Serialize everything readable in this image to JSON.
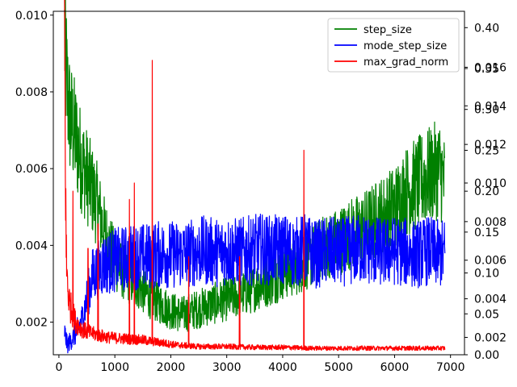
{
  "chart_data": {
    "type": "line",
    "title": "",
    "xlabel": "",
    "ylabel": "",
    "xlim": [
      -100,
      7250
    ],
    "x_ticks": [
      0,
      1000,
      2000,
      3000,
      4000,
      5000,
      6000,
      7000
    ],
    "x_tick_labels": [
      "0",
      "1000",
      "2000",
      "3000",
      "4000",
      "5000",
      "6000",
      "7000"
    ],
    "grid": false,
    "legend_position": "top-right",
    "axes": {
      "left": {
        "ylim": [
          0.00115,
          0.0101
        ],
        "ticks": [
          0.002,
          0.004,
          0.006,
          0.008,
          0.01
        ],
        "tick_labels": [
          "0.002",
          "0.004",
          "0.006",
          "0.008",
          "0.010"
        ]
      },
      "right_inner": {
        "ylim": [
          0.0011,
          0.0189
        ],
        "ticks": [
          0.002,
          0.004,
          0.006,
          0.008,
          0.01,
          0.012,
          0.014,
          0.016
        ],
        "tick_labels": [
          "0.002",
          "0.004",
          "0.006",
          "0.008",
          "0.010",
          "0.012",
          "0.014",
          "0.016"
        ]
      },
      "right_outer": {
        "ylim": [
          0.0,
          0.42
        ],
        "ticks": [
          0.0,
          0.05,
          0.1,
          0.15,
          0.2,
          0.25,
          0.3,
          0.35,
          0.4
        ],
        "tick_labels": [
          "0.00",
          "0.05",
          "0.10",
          "0.15",
          "0.20",
          "0.25",
          "0.30",
          "0.35",
          "0.40"
        ]
      }
    },
    "series": [
      {
        "name": "step_size",
        "color": "#008000",
        "axis": "left",
        "x": [
          100,
          150,
          200,
          300,
          400,
          500,
          600,
          700,
          800,
          900,
          1000,
          1200,
          1400,
          1600,
          1800,
          2000,
          2200,
          2400,
          2600,
          2800,
          3000,
          3200,
          3400,
          3600,
          3800,
          4000,
          4200,
          4400,
          4600,
          4800,
          5000,
          5200,
          5400,
          5600,
          5800,
          6000,
          6200,
          6400,
          6600,
          6800,
          6900
        ],
        "values": [
          0.0095,
          0.008,
          0.0073,
          0.0068,
          0.0062,
          0.0058,
          0.0054,
          0.005,
          0.0044,
          0.004,
          0.0036,
          0.0032,
          0.003,
          0.0027,
          0.0025,
          0.0023,
          0.0022,
          0.0023,
          0.0024,
          0.0025,
          0.0026,
          0.0027,
          0.0028,
          0.003,
          0.0031,
          0.0033,
          0.0034,
          0.0036,
          0.0038,
          0.004,
          0.0041,
          0.0043,
          0.0044,
          0.0046,
          0.0048,
          0.005,
          0.0054,
          0.0056,
          0.0058,
          0.006,
          0.0056
        ]
      },
      {
        "name": "mode_step_size",
        "color": "#0000ff",
        "axis": "right_inner",
        "x": [
          100,
          150,
          200,
          300,
          400,
          500,
          600,
          800,
          1000,
          1200,
          1400,
          1600,
          1800,
          2000,
          2200,
          2400,
          2600,
          2800,
          3000,
          3200,
          3400,
          3600,
          3800,
          4000,
          4200,
          4400,
          4600,
          4800,
          5000,
          5200,
          5400,
          5600,
          5800,
          6000,
          6200,
          6400,
          6600,
          6800,
          6900
        ],
        "values": [
          0.0023,
          0.0016,
          0.0018,
          0.0022,
          0.0028,
          0.004,
          0.0052,
          0.0058,
          0.006,
          0.0061,
          0.0062,
          0.0062,
          0.0063,
          0.0063,
          0.0063,
          0.0064,
          0.0065,
          0.0064,
          0.0065,
          0.0064,
          0.0065,
          0.0066,
          0.0065,
          0.0066,
          0.0064,
          0.0066,
          0.0063,
          0.0065,
          0.0064,
          0.0065,
          0.0066,
          0.0065,
          0.0064,
          0.0065,
          0.0064,
          0.0063,
          0.0065,
          0.0063,
          0.0064
        ]
      },
      {
        "name": "max_grad_norm",
        "color": "#ff0000",
        "axis": "right_outer",
        "x": [
          100,
          130,
          160,
          200,
          300,
          400,
          500,
          700,
          900,
          1100,
          1300,
          1500,
          1700,
          1900,
          2100,
          2300,
          2500,
          3000,
          3500,
          4000,
          4500,
          5000,
          5500,
          6000,
          6500,
          6900
        ],
        "values": [
          0.4,
          0.12,
          0.08,
          0.06,
          0.04,
          0.032,
          0.028,
          0.024,
          0.021,
          0.02,
          0.019,
          0.018,
          0.016,
          0.014,
          0.012,
          0.011,
          0.01,
          0.01,
          0.009,
          0.009,
          0.008,
          0.008,
          0.008,
          0.008,
          0.008,
          0.008
        ],
        "spikes": [
          {
            "x": 1670,
            "value": 0.36
          },
          {
            "x": 4380,
            "value": 0.25
          },
          {
            "x": 1350,
            "value": 0.21
          },
          {
            "x": 1260,
            "value": 0.19
          },
          {
            "x": 250,
            "value": 0.2
          },
          {
            "x": 3230,
            "value": 0.12
          },
          {
            "x": 2320,
            "value": 0.12
          },
          {
            "x": 700,
            "value": 0.16
          },
          {
            "x": 520,
            "value": 0.13
          }
        ]
      }
    ]
  }
}
